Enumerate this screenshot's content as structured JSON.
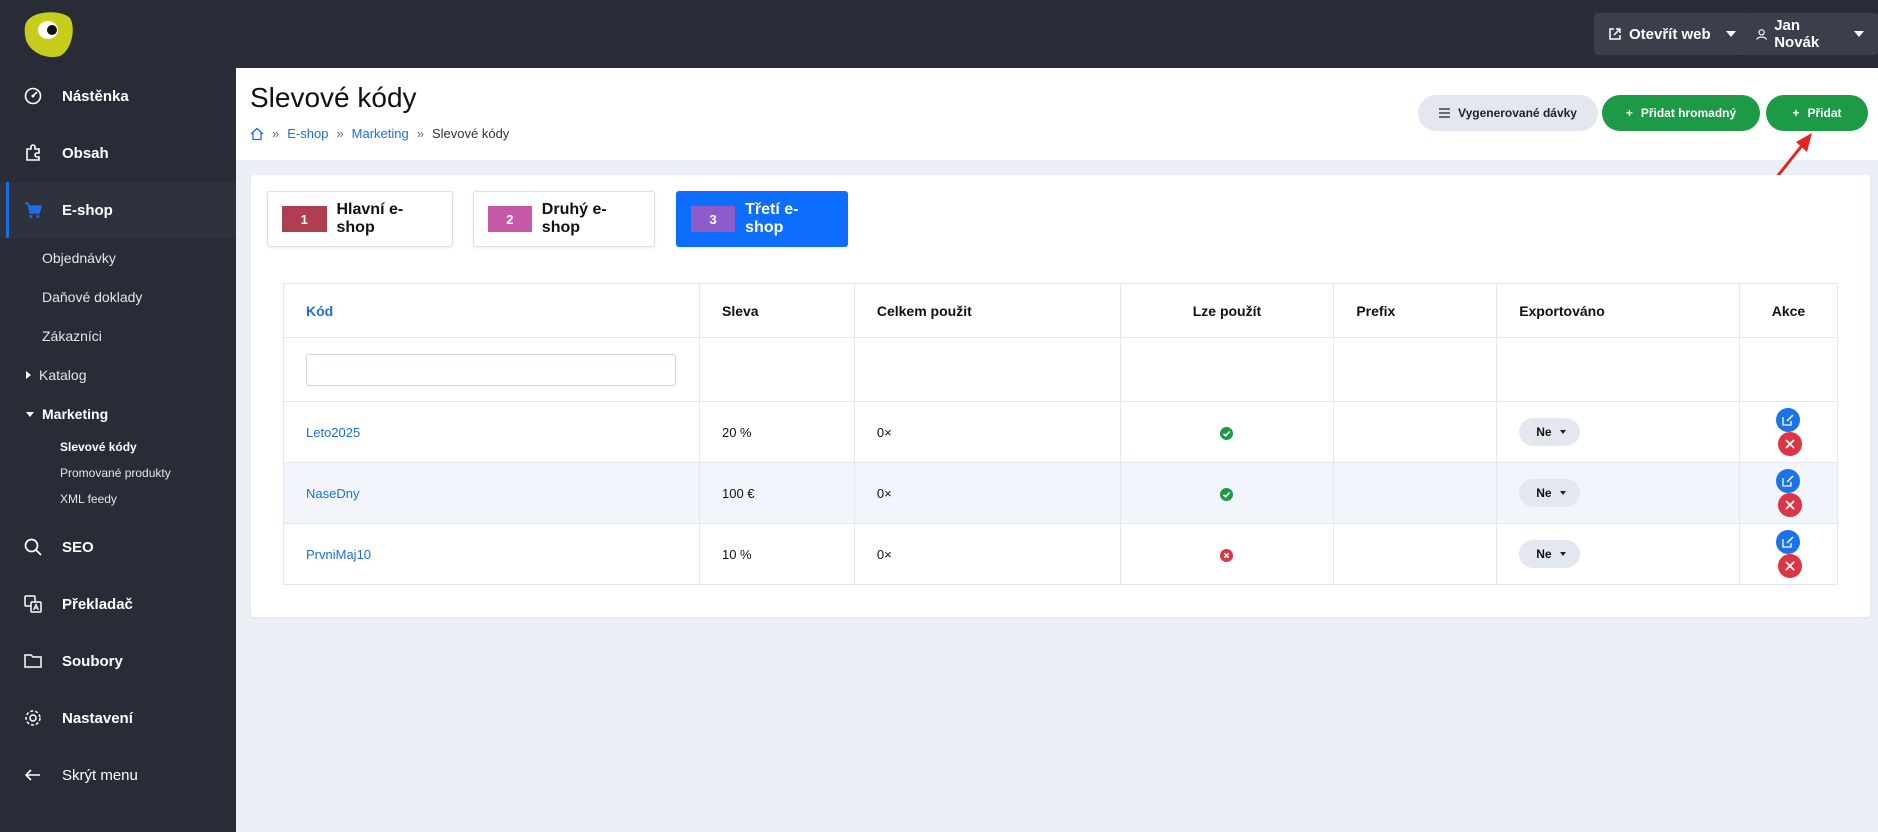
{
  "topbar": {
    "open_web_label": "Otevřít web",
    "user_label": "Jan Novák"
  },
  "sidebar": {
    "items": [
      {
        "label": "Nástěnka",
        "icon": "dashboard-icon"
      },
      {
        "label": "Obsah",
        "icon": "puzzle-icon"
      },
      {
        "label": "E-shop",
        "icon": "cart-icon"
      },
      {
        "label": "SEO",
        "icon": "search-icon"
      },
      {
        "label": "Překladač",
        "icon": "translate-icon"
      },
      {
        "label": "Soubory",
        "icon": "folder-icon"
      },
      {
        "label": "Nastavení",
        "icon": "gear-icon"
      },
      {
        "label": "Skrýt menu",
        "icon": "arrow-left-icon"
      }
    ],
    "eshop_sub": {
      "orders": "Objednávky",
      "tax_docs": "Daňové doklady",
      "customers": "Zákazníci",
      "catalog": "Katalog",
      "marketing": "Marketing",
      "marketing_sub": [
        "Slevové kódy",
        "Promované produkty",
        "XML feedy"
      ]
    }
  },
  "header": {
    "title": "Slevové kódy",
    "breadcrumb": [
      "E-shop",
      "Marketing",
      "Slevové kódy"
    ],
    "btn_batches": "Vygenerované dávky",
    "btn_bulk_add": "Přidat hromadný",
    "btn_add": "Přidat",
    "plus": "+"
  },
  "shops": [
    {
      "num": "1",
      "label": "Hlavní e-shop",
      "color": "#b03e52"
    },
    {
      "num": "2",
      "label": "Druhý e-shop",
      "color": "#c75aa8"
    },
    {
      "num": "3",
      "label": "Třetí e-shop",
      "color": "#8e5cc9"
    }
  ],
  "table": {
    "headers": [
      "Kód",
      "Sleva",
      "Celkem použit",
      "Lze použít",
      "Prefix",
      "Exportováno",
      "Akce"
    ],
    "rows": [
      {
        "code": "Leto2025",
        "discount": "20 %",
        "used": "0×",
        "usable": true,
        "prefix": "",
        "exported": "Ne"
      },
      {
        "code": "NaseDny",
        "discount": "100 €",
        "used": "0×",
        "usable": true,
        "prefix": "",
        "exported": "Ne"
      },
      {
        "code": "PrvniMaj10",
        "discount": "10 %",
        "used": "0×",
        "usable": false,
        "prefix": "",
        "exported": "Ne"
      }
    ]
  },
  "colors": {
    "accent": "#1a6ee6",
    "green": "#1c9a45",
    "red": "#dc3545",
    "sidebar": "#282c36"
  }
}
